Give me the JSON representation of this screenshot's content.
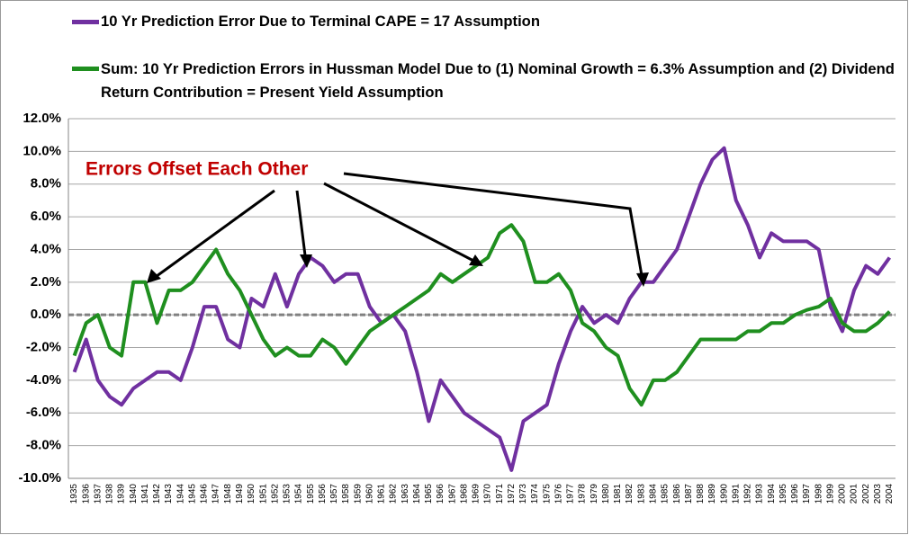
{
  "chart_data": {
    "type": "line",
    "annotation": "Errors Offset Each Other",
    "categories": [
      "1935",
      "1936",
      "1937",
      "1938",
      "1939",
      "1940",
      "1941",
      "1942",
      "1943",
      "1944",
      "1945",
      "1946",
      "1947",
      "1948",
      "1949",
      "1950",
      "1951",
      "1952",
      "1953",
      "1954",
      "1955",
      "1956",
      "1957",
      "1958",
      "1959",
      "1960",
      "1961",
      "1962",
      "1963",
      "1964",
      "1965",
      "1966",
      "1967",
      "1968",
      "1969",
      "1970",
      "1971",
      "1972",
      "1973",
      "1974",
      "1975",
      "1976",
      "1977",
      "1978",
      "1979",
      "1980",
      "1981",
      "1982",
      "1983",
      "1984",
      "1985",
      "1986",
      "1987",
      "1988",
      "1989",
      "1990",
      "1991",
      "1992",
      "1993",
      "1994",
      "1995",
      "1996",
      "1997",
      "1998",
      "1999",
      "2000",
      "2001",
      "2002",
      "2003",
      "2004"
    ],
    "series": [
      {
        "name": "10 Yr Prediction Error Due to Terminal CAPE = 17 Assumption",
        "color": "#7030a0",
        "values": [
          -3.5,
          -1.5,
          -4.0,
          -5.0,
          -5.5,
          -4.5,
          -4.0,
          -3.5,
          -3.5,
          -4.0,
          -2.0,
          0.5,
          0.5,
          -1.5,
          -2.0,
          1.0,
          0.5,
          2.5,
          0.5,
          2.5,
          3.5,
          3.0,
          2.0,
          2.5,
          2.5,
          0.5,
          -0.5,
          0.0,
          -1.0,
          -3.5,
          -6.5,
          -4.0,
          -5.0,
          -6.0,
          -6.5,
          -7.0,
          -7.5,
          -9.5,
          -6.5,
          -6.0,
          -5.5,
          -3.0,
          -1.0,
          0.5,
          -0.5,
          0.0,
          -0.5,
          1.0,
          2.0,
          2.0,
          3.0,
          4.0,
          6.0,
          8.0,
          9.5,
          10.2,
          7.0,
          5.5,
          3.5,
          5.0,
          4.5,
          4.5,
          4.5,
          4.0,
          0.5,
          -1.0,
          1.5,
          3.0,
          2.5,
          3.5
        ]
      },
      {
        "name": "Sum: 10 Yr Prediction Errors in Hussman Model Due to (1) Nominal Growth = 6.3% Assumption and (2) Dividend Return Contribution = Present Yield Assumption",
        "color": "#1f8f1f",
        "values": [
          -2.5,
          -0.5,
          0.0,
          -2.0,
          -2.5,
          2.0,
          2.0,
          -0.5,
          1.5,
          1.5,
          2.0,
          3.0,
          4.0,
          2.5,
          1.5,
          0.0,
          -1.5,
          -2.5,
          -2.0,
          -2.5,
          -2.5,
          -1.5,
          -2.0,
          -3.0,
          -2.0,
          -1.0,
          -0.5,
          0.0,
          0.5,
          1.0,
          1.5,
          2.5,
          2.0,
          2.5,
          3.0,
          3.5,
          5.0,
          5.5,
          4.5,
          2.0,
          2.0,
          2.5,
          1.5,
          -0.5,
          -1.0,
          -2.0,
          -2.5,
          -4.5,
          -5.5,
          -4.0,
          -4.0,
          -3.5,
          -2.5,
          -1.5,
          -1.5,
          -1.5,
          -1.5,
          -1.0,
          -1.0,
          -0.5,
          -0.5,
          0.0,
          0.3,
          0.5,
          1.0,
          -0.5,
          -1.0,
          -1.0,
          -0.5,
          0.2
        ]
      }
    ],
    "ylim": [
      -10,
      12
    ],
    "yticks": [
      {
        "value": -10,
        "label": "-10.0%"
      },
      {
        "value": -8,
        "label": "-8.0%"
      },
      {
        "value": -6,
        "label": "-6.0%"
      },
      {
        "value": -4,
        "label": "-4.0%"
      },
      {
        "value": -2,
        "label": "-2.0%"
      },
      {
        "value": 0,
        "label": "0.0%"
      },
      {
        "value": 2,
        "label": "2.0%"
      },
      {
        "value": 4,
        "label": "4.0%"
      },
      {
        "value": 6,
        "label": "6.0%"
      },
      {
        "value": 8,
        "label": "8.0%"
      },
      {
        "value": 10,
        "label": "10.0%"
      },
      {
        "value": 12,
        "label": "12.0%"
      }
    ],
    "grid": true,
    "reference_line": 0
  }
}
